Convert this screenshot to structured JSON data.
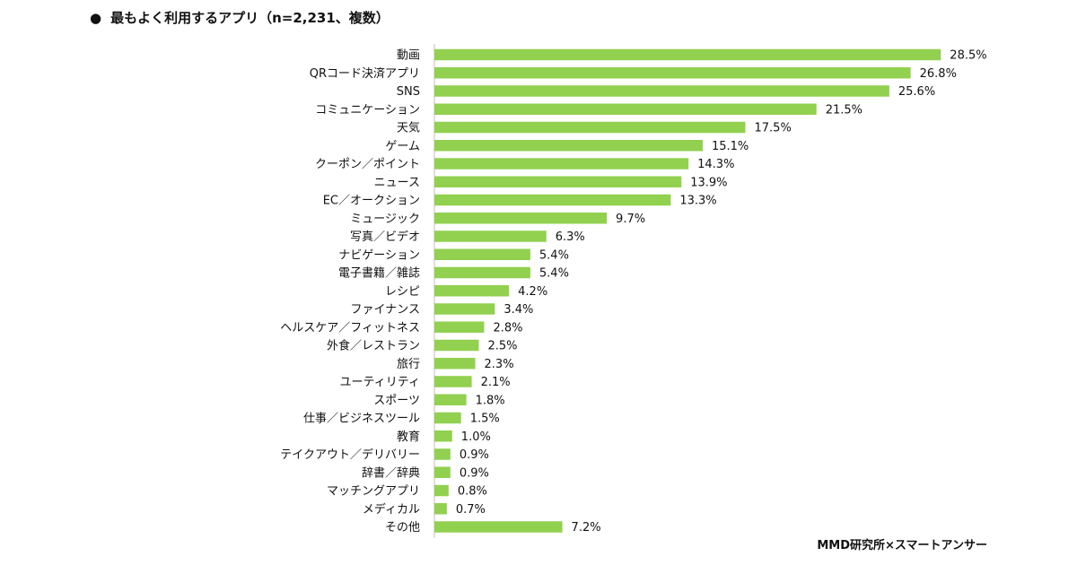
{
  "title": {
    "bullet": "●",
    "text": "最もよく利用するアプリ（n=2,231、複数）"
  },
  "credit": "MMD研究所×スマートアンサー",
  "colors": {
    "bar": "#92D050",
    "axis": "#bfbfbf",
    "text": "#111111"
  },
  "chart_data": {
    "type": "bar",
    "orientation": "horizontal",
    "title": "最もよく利用するアプリ（n=2,231、複数）",
    "xlabel": "",
    "ylabel": "",
    "unit": "%",
    "xlim": [
      0,
      30
    ],
    "grid": false,
    "legend": "none",
    "categories": [
      "動画",
      "QRコード決済アプリ",
      "SNS",
      "コミュニケーション",
      "天気",
      "ゲーム",
      "クーポン／ポイント",
      "ニュース",
      "EC／オークション",
      "ミュージック",
      "写真／ビデオ",
      "ナビゲーション",
      "電子書籍／雑誌",
      "レシピ",
      "ファイナンス",
      "ヘルスケア／フィットネス",
      "外食／レストラン",
      "旅行",
      "ユーティリティ",
      "スポーツ",
      "仕事／ビジネスツール",
      "教育",
      "テイクアウト／デリバリー",
      "辞書／辞典",
      "マッチングアプリ",
      "メディカル",
      "その他"
    ],
    "values": [
      28.5,
      26.8,
      25.6,
      21.5,
      17.5,
      15.1,
      14.3,
      13.9,
      13.3,
      9.7,
      6.3,
      5.4,
      5.4,
      4.2,
      3.4,
      2.8,
      2.5,
      2.3,
      2.1,
      1.8,
      1.5,
      1.0,
      0.9,
      0.9,
      0.8,
      0.7,
      7.2
    ],
    "value_labels": [
      "28.5%",
      "26.8%",
      "25.6%",
      "21.5%",
      "17.5%",
      "15.1%",
      "14.3%",
      "13.9%",
      "13.3%",
      "9.7%",
      "6.3%",
      "5.4%",
      "5.4%",
      "4.2%",
      "3.4%",
      "2.8%",
      "2.5%",
      "2.3%",
      "2.1%",
      "1.8%",
      "1.5%",
      "1.0%",
      "0.9%",
      "0.9%",
      "0.8%",
      "0.7%",
      "7.2%"
    ]
  }
}
